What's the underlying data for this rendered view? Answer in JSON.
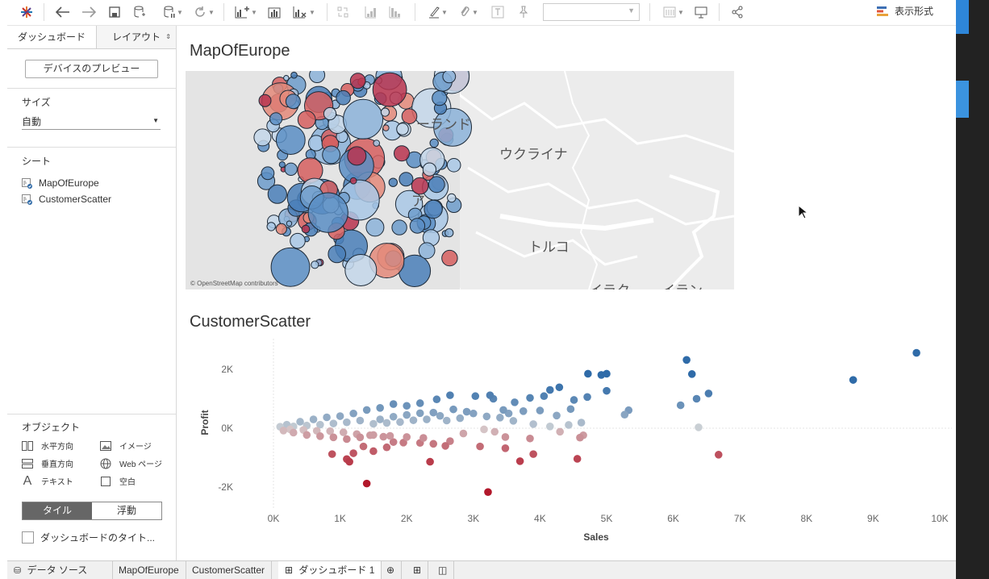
{
  "toolbar": {
    "show_me_label": "表示形式"
  },
  "sidebar": {
    "tabs": [
      {
        "label": "ダッシュボード"
      },
      {
        "label": "レイアウト"
      }
    ],
    "device_preview_label": "デバイスのプレビュー",
    "size_title": "サイズ",
    "size_value": "自動",
    "sheets_title": "シート",
    "sheets": [
      {
        "label": "MapOfEurope"
      },
      {
        "label": "CustomerScatter"
      }
    ],
    "objects_title": "オブジェクト",
    "objects": [
      {
        "label": "水平方向",
        "icon": "horizontal-container-icon"
      },
      {
        "label": "イメージ",
        "icon": "image-icon"
      },
      {
        "label": "垂直方向",
        "icon": "vertical-container-icon"
      },
      {
        "label": "Web ページ",
        "icon": "globe-icon"
      },
      {
        "label": "テキスト",
        "icon": "text-icon"
      },
      {
        "label": "空白",
        "icon": "blank-icon"
      }
    ],
    "mode_tiled": "タイル",
    "mode_floating": "浮動",
    "show_title_label": "ダッシュボードのタイト..."
  },
  "dashboard": {
    "map_title": "MapOfEurope",
    "map_labels": [
      "ーランド",
      "ウクライナ",
      "トルコ",
      "ア",
      "イラク",
      "イラン"
    ],
    "map_attribution": "© OpenStreetMap contributors",
    "scatter_title": "CustomerScatter"
  },
  "chart_data": {
    "type": "scatter",
    "xlabel": "Sales",
    "ylabel": "Profit",
    "xlim": [
      0,
      10000
    ],
    "ylim": [
      -2800,
      3000
    ],
    "x_ticks": [
      0,
      1000,
      2000,
      3000,
      4000,
      5000,
      6000,
      7000,
      8000,
      9000,
      10000
    ],
    "x_tick_labels": [
      "0K",
      "1K",
      "2K",
      "3K",
      "4K",
      "5K",
      "6K",
      "7K",
      "8K",
      "9K",
      "10K"
    ],
    "y_ticks": [
      2000,
      0,
      -2000
    ],
    "y_tick_labels": [
      "2K",
      "0K",
      "-2K"
    ],
    "grid": false,
    "color_scale": {
      "negative": "#b2182b",
      "neutral": "#d9d9d9",
      "positive": "#2f6ba8"
    },
    "points": [
      [
        9650,
        2560
      ],
      [
        8700,
        1640
      ],
      [
        6200,
        2320
      ],
      [
        6280,
        1840
      ],
      [
        6350,
        1000
      ],
      [
        6530,
        1180
      ],
      [
        6110,
        780
      ],
      [
        6380,
        30
      ],
      [
        6680,
        -900
      ],
      [
        4720,
        1850
      ],
      [
        4920,
        1810
      ],
      [
        5000,
        1850
      ],
      [
        5000,
        1270
      ],
      [
        5330,
        610
      ],
      [
        5270,
        460
      ],
      [
        4710,
        1060
      ],
      [
        4510,
        960
      ],
      [
        4460,
        650
      ],
      [
        4250,
        430
      ],
      [
        4290,
        1390
      ],
      [
        4150,
        1300
      ],
      [
        4060,
        1090
      ],
      [
        3850,
        1030
      ],
      [
        3620,
        880
      ],
      [
        3530,
        500
      ],
      [
        3300,
        1000
      ],
      [
        3030,
        1090
      ],
      [
        3250,
        1120
      ],
      [
        2650,
        1120
      ],
      [
        2450,
        980
      ],
      [
        2200,
        850
      ],
      [
        2000,
        760
      ],
      [
        1800,
        820
      ],
      [
        1600,
        690
      ],
      [
        1400,
        620
      ],
      [
        1200,
        500
      ],
      [
        1000,
        410
      ],
      [
        800,
        370
      ],
      [
        600,
        300
      ],
      [
        400,
        220
      ],
      [
        200,
        120
      ],
      [
        100,
        50
      ],
      [
        2900,
        560
      ],
      [
        2700,
        640
      ],
      [
        2500,
        420
      ],
      [
        2300,
        300
      ],
      [
        2100,
        270
      ],
      [
        1900,
        210
      ],
      [
        1700,
        180
      ],
      [
        1500,
        150
      ],
      [
        2800,
        340
      ],
      [
        2600,
        260
      ],
      [
        3000,
        500
      ],
      [
        3200,
        400
      ],
      [
        3400,
        360
      ],
      [
        3600,
        250
      ],
      [
        3900,
        140
      ],
      [
        4150,
        60
      ],
      [
        4430,
        110
      ],
      [
        4620,
        190
      ],
      [
        4000,
        600
      ],
      [
        3750,
        580
      ],
      [
        3450,
        620
      ],
      [
        1300,
        260
      ],
      [
        1100,
        200
      ],
      [
        900,
        160
      ],
      [
        700,
        120
      ],
      [
        500,
        90
      ],
      [
        300,
        60
      ],
      [
        1600,
        300
      ],
      [
        1800,
        390
      ],
      [
        2000,
        450
      ],
      [
        2200,
        510
      ],
      [
        2400,
        530
      ],
      [
        4650,
        -240
      ],
      [
        4600,
        -320
      ],
      [
        4300,
        -120
      ],
      [
        3850,
        -350
      ],
      [
        3160,
        -40
      ],
      [
        3320,
        -120
      ],
      [
        3700,
        -1120
      ],
      [
        4560,
        -1040
      ],
      [
        3900,
        -880
      ],
      [
        3480,
        -680
      ],
      [
        3100,
        -620
      ],
      [
        2650,
        -440
      ],
      [
        2400,
        -530
      ],
      [
        2200,
        -500
      ],
      [
        1950,
        -490
      ],
      [
        1800,
        -470
      ],
      [
        1650,
        -290
      ],
      [
        1450,
        -240
      ],
      [
        1250,
        -200
      ],
      [
        1050,
        -140
      ],
      [
        850,
        -100
      ],
      [
        650,
        -90
      ],
      [
        450,
        -60
      ],
      [
        250,
        -40
      ],
      [
        2250,
        -330
      ],
      [
        2000,
        -300
      ],
      [
        1750,
        -260
      ],
      [
        1500,
        -230
      ],
      [
        1300,
        -310
      ],
      [
        1100,
        -370
      ],
      [
        900,
        -310
      ],
      [
        700,
        -270
      ],
      [
        500,
        -230
      ],
      [
        300,
        -150
      ],
      [
        150,
        -80
      ],
      [
        1200,
        -850
      ],
      [
        1100,
        -1050
      ],
      [
        1140,
        -1140
      ],
      [
        880,
        -880
      ],
      [
        1350,
        -620
      ],
      [
        1500,
        -780
      ],
      [
        1700,
        -650
      ],
      [
        2350,
        -1140
      ],
      [
        2580,
        -600
      ],
      [
        2850,
        -180
      ],
      [
        1400,
        -1880
      ],
      [
        3220,
        -2170
      ],
      [
        3480,
        -300
      ]
    ]
  }
}
